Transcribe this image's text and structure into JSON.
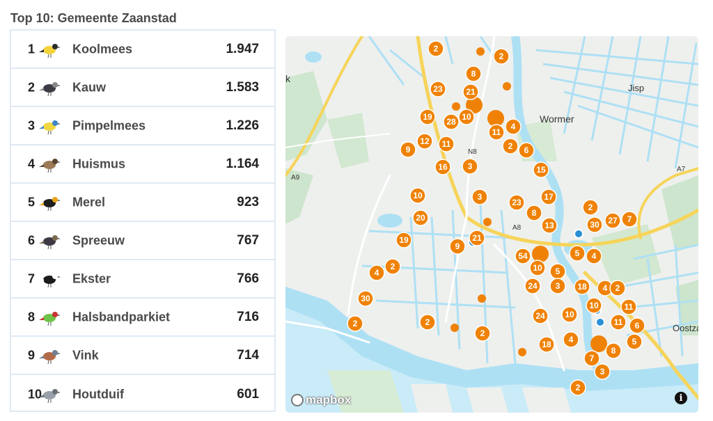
{
  "title": "Top 10: Gemeente Zaanstad",
  "birds": [
    {
      "rank": "1",
      "name": "Koolmees",
      "count": "1.947",
      "icon": "great-tit-icon"
    },
    {
      "rank": "2",
      "name": "Kauw",
      "count": "1.583",
      "icon": "jackdaw-icon"
    },
    {
      "rank": "3",
      "name": "Pimpelmees",
      "count": "1.226",
      "icon": "blue-tit-icon"
    },
    {
      "rank": "4",
      "name": "Huismus",
      "count": "1.164",
      "icon": "house-sparrow-icon"
    },
    {
      "rank": "5",
      "name": "Merel",
      "count": "923",
      "icon": "blackbird-icon"
    },
    {
      "rank": "6",
      "name": "Spreeuw",
      "count": "767",
      "icon": "starling-icon"
    },
    {
      "rank": "7",
      "name": "Ekster",
      "count": "766",
      "icon": "magpie-icon"
    },
    {
      "rank": "8",
      "name": "Halsbandparkiet",
      "count": "716",
      "icon": "parakeet-icon"
    },
    {
      "rank": "9",
      "name": "Vink",
      "count": "714",
      "icon": "chaffinch-icon"
    },
    {
      "rank": "10",
      "name": "Houtduif",
      "count": "601",
      "icon": "woodpigeon-icon"
    }
  ],
  "map": {
    "place_labels": [
      "Wormer",
      "Jisp",
      "Oostza",
      "k"
    ],
    "road_labels": [
      "N8",
      "A8",
      "A9",
      "A7"
    ],
    "attribution": "mapbox",
    "info_label": "i",
    "marker_color": "#ef8206",
    "water_color": "#aee0f4",
    "cluster_counts": [
      "2",
      "2",
      "8",
      "23",
      "21",
      "19",
      "28",
      "10",
      "11",
      "4",
      "9",
      "12",
      "11",
      "2",
      "6",
      "16",
      "3",
      "15",
      "10",
      "3",
      "23",
      "17",
      "20",
      "8",
      "2",
      "13",
      "30",
      "27",
      "7",
      "19",
      "21",
      "9",
      "5",
      "4",
      "54",
      "4",
      "2",
      "10",
      "5",
      "30",
      "24",
      "3",
      "18",
      "4",
      "2",
      "10",
      "11",
      "2",
      "11",
      "6",
      "24",
      "10",
      "5",
      "2",
      "18",
      "4",
      "7",
      "8",
      "3",
      "2",
      "2"
    ]
  }
}
